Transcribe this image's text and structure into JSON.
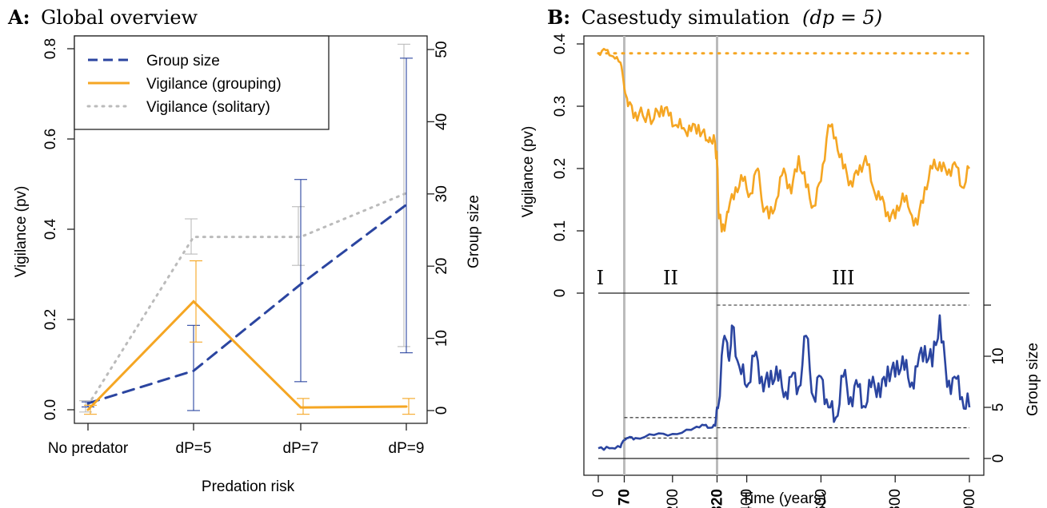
{
  "chart_data": [
    {
      "type": "line",
      "panel_letter": "A:",
      "title": "Global overview",
      "xlabel": "Predation risk",
      "ylabel_left": "Vigilance (pv)",
      "ylabel_right": "Group size",
      "categories": [
        "No predator",
        "dP=5",
        "dP=7",
        "dP=9"
      ],
      "y_left_lim": [
        0,
        0.8
      ],
      "y_left_ticks": [
        "0.0",
        "0.2",
        "0.4",
        "0.6",
        "0.8"
      ],
      "y_right_lim": [
        0,
        50
      ],
      "y_right_ticks": [
        "0",
        "10",
        "20",
        "30",
        "40",
        "50"
      ],
      "legend": [
        "Group size",
        "Vigilance (grouping)",
        "Vigilance (solitary)"
      ],
      "legend_position": "top-left",
      "series": [
        {
          "name": "Group size",
          "axis": "right",
          "style": "dashed",
          "color": "#2b45a0",
          "values": [
            1,
            5.5,
            17.5,
            28.5
          ],
          "errors": [
            [
              0.5,
              1.2
            ],
            [
              0,
              11.8
            ],
            [
              4,
              32
            ],
            [
              8,
              48.8
            ]
          ]
        },
        {
          "name": "Vigilance (grouping)",
          "axis": "left",
          "style": "solid",
          "color": "#f5a623",
          "values": [
            0.0,
            0.24,
            0.005,
            0.007
          ],
          "errors": [
            [
              -0.01,
              0.01
            ],
            [
              0.15,
              0.33
            ],
            [
              -0.01,
              0.025
            ],
            [
              -0.01,
              0.025
            ]
          ]
        },
        {
          "name": "Vigilance (solitary)",
          "axis": "left",
          "style": "dotted",
          "color": "#bbbbbb",
          "values": [
            0.01,
            0.383,
            0.383,
            0.48
          ],
          "errors": [
            [
              -0.005,
              0.02
            ],
            [
              0.345,
              0.423
            ],
            [
              0.32,
              0.45
            ],
            [
              0.14,
              0.81
            ]
          ]
        }
      ]
    },
    {
      "type": "line",
      "panel_letter": "B:",
      "title": "Casestudy simulation",
      "title_formula": "(dp = 5)",
      "xlabel": "Time (years)",
      "ylabel_top": "Vigilance (pv)",
      "ylabel_bottom": "Group size",
      "x_lim": [
        0,
        1000
      ],
      "x_ticks": [
        "0",
        "70",
        "200",
        "320",
        "400",
        "600",
        "800",
        "1000"
      ],
      "x_ticks_bold": [
        "70",
        "320"
      ],
      "vigilance_lim": [
        0,
        0.4
      ],
      "vigilance_ticks": [
        "0",
        "0.1",
        "0.2",
        "0.3",
        "0.4"
      ],
      "group_size_lim": [
        0,
        15
      ],
      "group_size_ticks": [
        "0",
        "5",
        "10"
      ],
      "phases": [
        "I",
        "II",
        "III"
      ],
      "phase_boundaries": [
        70,
        320
      ],
      "solitary_vigilance_reference": 0.385,
      "group_size_reference_lines": [
        {
          "x_range": [
            70,
            320
          ],
          "values": [
            2,
            4
          ]
        },
        {
          "x_range": [
            320,
            1000
          ],
          "values": [
            3,
            15
          ]
        }
      ],
      "series": [
        {
          "name": "Vigilance",
          "color": "#f5a623",
          "x": [
            0,
            20,
            40,
            60,
            70,
            80,
            100,
            120,
            150,
            170,
            190,
            210,
            230,
            250,
            270,
            290,
            300,
            315,
            320,
            325,
            340,
            350,
            370,
            390,
            410,
            430,
            440,
            460,
            480,
            500,
            520,
            540,
            560,
            580,
            600,
            620,
            640,
            660,
            680,
            700,
            720,
            740,
            760,
            780,
            800,
            820,
            840,
            860,
            880,
            900,
            920,
            940,
            960,
            980,
            1000
          ],
          "y": [
            0.385,
            0.39,
            0.38,
            0.37,
            0.33,
            0.3,
            0.29,
            0.285,
            0.28,
            0.3,
            0.285,
            0.27,
            0.265,
            0.26,
            0.27,
            0.245,
            0.25,
            0.24,
            0.21,
            0.12,
            0.1,
            0.13,
            0.17,
            0.18,
            0.16,
            0.2,
            0.15,
            0.12,
            0.15,
            0.2,
            0.16,
            0.22,
            0.17,
            0.14,
            0.18,
            0.27,
            0.25,
            0.2,
            0.18,
            0.19,
            0.22,
            0.17,
            0.15,
            0.13,
            0.12,
            0.16,
            0.13,
            0.11,
            0.17,
            0.2,
            0.21,
            0.19,
            0.21,
            0.17,
            0.2
          ]
        },
        {
          "name": "Group size",
          "color": "#2b45a0",
          "x": [
            0,
            30,
            60,
            70,
            80,
            100,
            150,
            200,
            250,
            280,
            300,
            315,
            320,
            330,
            340,
            350,
            360,
            380,
            400,
            420,
            440,
            460,
            480,
            500,
            520,
            540,
            560,
            580,
            600,
            620,
            640,
            660,
            680,
            700,
            720,
            740,
            760,
            780,
            800,
            820,
            840,
            860,
            880,
            900,
            920,
            940,
            960,
            980,
            1000
          ],
          "y": [
            1,
            1,
            1.1,
            1.8,
            2,
            2,
            2.3,
            2.4,
            2.8,
            3.3,
            3,
            3.2,
            5,
            8,
            12,
            10,
            13,
            9,
            7,
            10,
            8,
            7,
            9,
            6,
            8,
            7,
            12,
            6,
            8,
            5,
            4,
            8,
            6,
            7,
            5,
            8,
            6,
            9,
            8,
            10,
            7,
            9,
            11,
            9,
            14,
            7,
            8,
            6,
            5
          ]
        }
      ]
    }
  ]
}
